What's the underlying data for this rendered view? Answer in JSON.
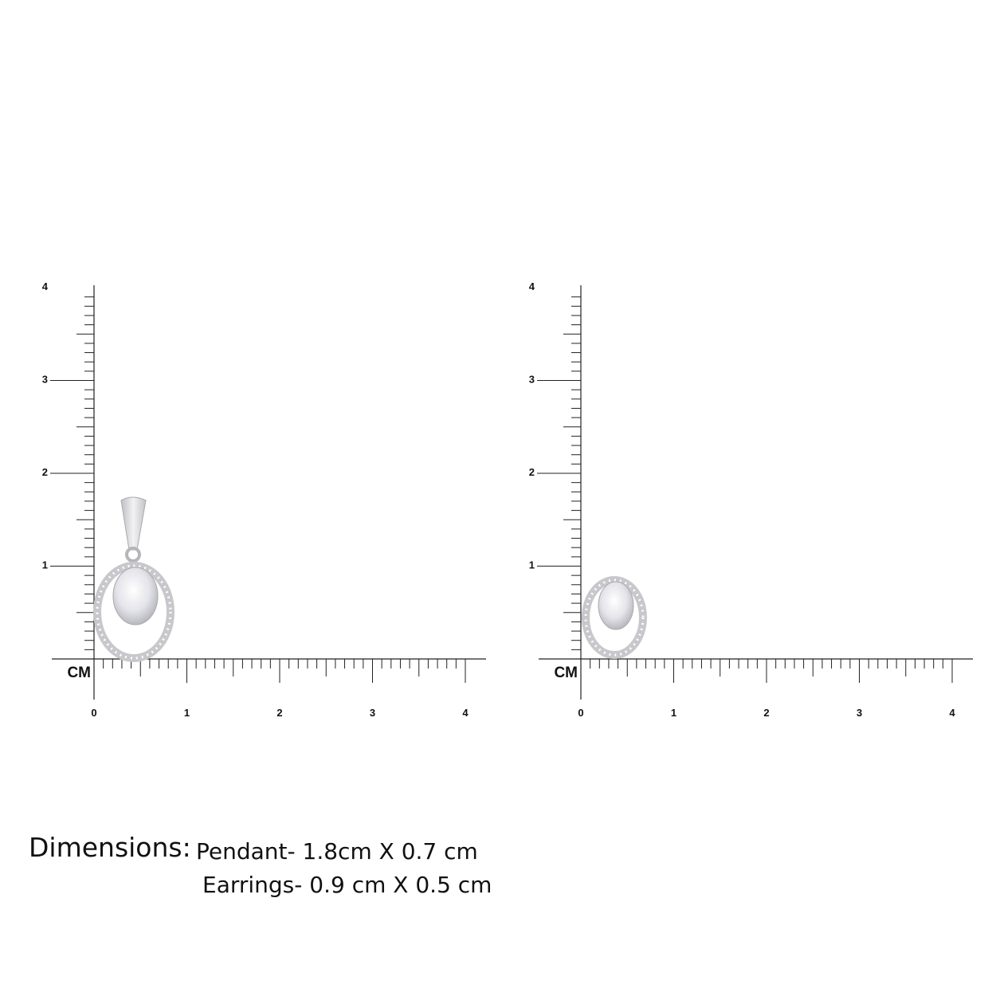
{
  "rulers": [
    {
      "id": "pendant-ruler",
      "unit_label": "CM",
      "x_ticks": [
        "0",
        "1",
        "2",
        "3",
        "4"
      ],
      "y_ticks": [
        "1",
        "2",
        "3",
        "4"
      ],
      "item": "pendant"
    },
    {
      "id": "earring-ruler",
      "unit_label": "CM",
      "x_ticks": [
        "0",
        "1",
        "2",
        "3",
        "4"
      ],
      "y_ticks": [
        "1",
        "2",
        "3",
        "4"
      ],
      "item": "earring"
    }
  ],
  "dimensions": {
    "title": "Dimensions:",
    "pendant": "Pendant- 1.8cm X 0.7 cm",
    "earrings": "Earrings- 0.9 cm  X 0.5 cm"
  },
  "colors": {
    "ink": "#111111",
    "silver": "#d8d8dc",
    "stone": "#f0f0f4"
  }
}
